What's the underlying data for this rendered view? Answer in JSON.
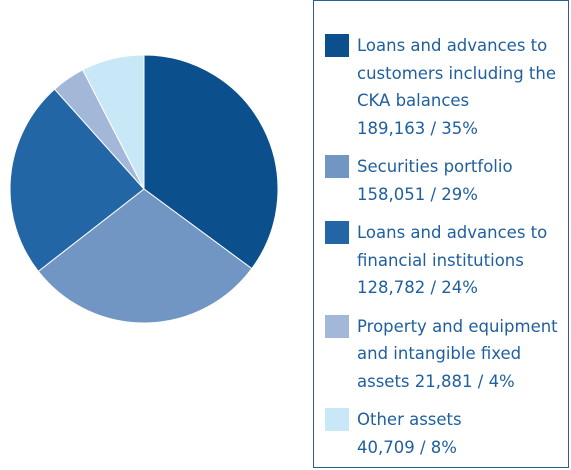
{
  "chart_data": {
    "type": "pie",
    "categories": [
      "Loans and advances to customers including the CKA balances",
      "Securities portfolio",
      "Loans and advances to financial institutions",
      "Property and equipment and intangible fixed assets",
      "Other assets"
    ],
    "values": [
      189163,
      158051,
      128782,
      21881,
      40709
    ],
    "value_labels": [
      "189,163 / 35%",
      "158,051 / 29%",
      "128,782 / 24%",
      "21,881 / 4%",
      "40,709 / 8%"
    ],
    "colors": [
      "#0b4f8c",
      "#7196c4",
      "#2366a5",
      "#a3b8d8",
      "#c8e8f8"
    ]
  }
}
